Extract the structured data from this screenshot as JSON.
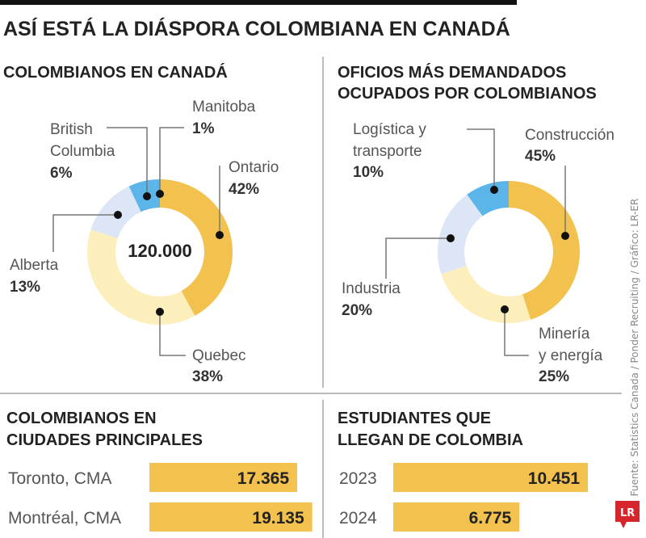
{
  "title": "ASÍ ESTÁ LA DIÁSPORA COLOMBIANA EN CANADÁ",
  "source": "Fuente: Statistics Canada / Ponder Recruiting / Gráfico: LR-ER",
  "logo": "LR",
  "colors": {
    "gold": "#f2c14e",
    "light_yellow": "#fcefbb",
    "light_blue": "#dde6f7",
    "blue": "#5cb5e8",
    "red": "#d7262b"
  },
  "chart_data": [
    {
      "type": "pie",
      "donut": true,
      "title": "COLOMBIANOS EN CANADÁ",
      "center_label": "120.000",
      "categories": [
        "Ontario",
        "Quebec",
        "Alberta",
        "British Columbia",
        "Manitoba"
      ],
      "labels": [
        [
          "Ontario"
        ],
        [
          "Quebec"
        ],
        [
          "Alberta"
        ],
        [
          "British",
          "Columbia"
        ],
        [
          "Manitoba"
        ]
      ],
      "values": [
        42,
        38,
        13,
        6,
        1
      ],
      "value_labels": [
        "42%",
        "38%",
        "13%",
        "6%",
        "1%"
      ],
      "colors": [
        "#f2c14e",
        "#fcefbb",
        "#dde6f7",
        "#5cb5e8",
        "#5cb5e8"
      ]
    },
    {
      "type": "pie",
      "donut": true,
      "title": [
        "OFICIOS MÁS DEMANDADOS",
        "OCUPADOS POR COLOMBIANOS"
      ],
      "categories": [
        "Construcción",
        "Minería y energía",
        "Industria",
        "Logística y transporte"
      ],
      "labels": [
        [
          "Construcción"
        ],
        [
          "Minería",
          "y energía"
        ],
        [
          "Industria"
        ],
        [
          "Logística y",
          "transporte"
        ]
      ],
      "values": [
        45,
        25,
        20,
        10
      ],
      "value_labels": [
        "45%",
        "25%",
        "20%",
        "10%"
      ],
      "colors": [
        "#f2c14e",
        "#fcefbb",
        "#dde6f7",
        "#5cb5e8"
      ]
    },
    {
      "type": "bar",
      "orientation": "horizontal",
      "title": [
        "COLOMBIANOS EN",
        "CIUDADES PRINCIPALES"
      ],
      "categories": [
        "Toronto, CMA",
        "Montréal, CMA"
      ],
      "values": [
        17365,
        19135
      ],
      "value_labels": [
        "17.365",
        "19.135"
      ],
      "color": "#f2c14e"
    },
    {
      "type": "bar",
      "orientation": "horizontal",
      "title": [
        "ESTUDIANTES QUE",
        "LLEGAN DE COLOMBIA"
      ],
      "categories": [
        "2023",
        "2024"
      ],
      "values": [
        10451,
        6775
      ],
      "value_labels": [
        "10.451",
        "6.775"
      ],
      "color": "#f2c14e"
    }
  ]
}
